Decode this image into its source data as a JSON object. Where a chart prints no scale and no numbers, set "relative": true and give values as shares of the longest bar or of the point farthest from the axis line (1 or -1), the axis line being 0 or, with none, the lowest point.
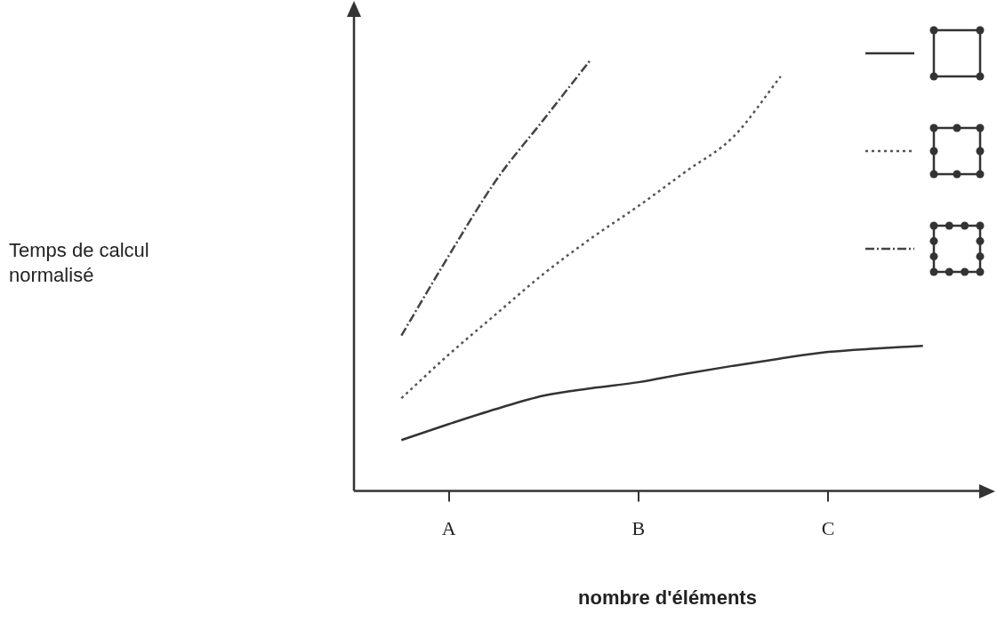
{
  "chart_data": {
    "type": "line",
    "relative": true,
    "xlabel": "nombre d'éléments",
    "annotations": [
      "Temps de calcul\nnormalisé"
    ],
    "categories": [
      null,
      null,
      "A",
      null,
      null,
      null,
      "B",
      null,
      null,
      null,
      "C",
      null,
      null,
      null
    ],
    "marker": "none",
    "grid": false,
    "series": [
      {
        "color": "#333333",
        "line_style": "solid",
        "values": [
          null,
          0.118,
          0.155,
          0.19,
          0.221,
          0.238,
          0.252,
          0.272,
          0.29,
          0.307,
          0.322,
          0.33,
          0.336,
          null
        ]
      },
      {
        "color": "#555555",
        "line_style": "dotted",
        "values": [
          null,
          0.215,
          0.316,
          0.41,
          0.503,
          0.585,
          0.66,
          0.74,
          0.82,
          0.96,
          null,
          null,
          null,
          null
        ]
      },
      {
        "color": "#444444",
        "line_style": "dashdot",
        "values": [
          null,
          0.36,
          0.545,
          0.72,
          0.86,
          1.0,
          null,
          null,
          null,
          null,
          null,
          null,
          null,
          null
        ]
      }
    ]
  }
}
